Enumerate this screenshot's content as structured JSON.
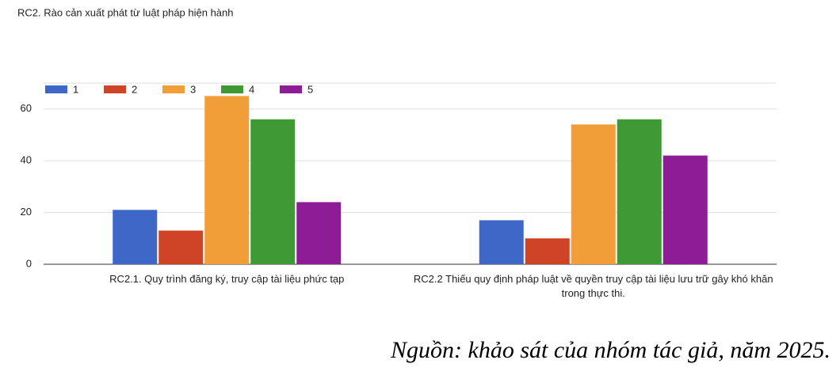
{
  "chart_data": {
    "type": "bar",
    "title": "RC2. Rào cản xuất phát từ luật pháp hiện hành",
    "categories": [
      "RC2.1. Quy trình đăng ký, truy cập tài liệu phức tạp",
      "RC2.2 Thiếu quy định pháp luật về quyền truy cập tài liệu lưu trữ gây khó khăn trong thực thi."
    ],
    "series": [
      {
        "name": "1",
        "color": "#3e67c8",
        "values": [
          21,
          17
        ]
      },
      {
        "name": "2",
        "color": "#cf4427",
        "values": [
          13,
          10
        ]
      },
      {
        "name": "3",
        "color": "#f19e38",
        "values": [
          65,
          54
        ]
      },
      {
        "name": "4",
        "color": "#3f9a36",
        "values": [
          56,
          56
        ]
      },
      {
        "name": "5",
        "color": "#8f1c97",
        "values": [
          24,
          42
        ]
      }
    ],
    "ylim": [
      0,
      70
    ],
    "yticks": [
      0,
      20,
      40,
      60
    ],
    "grid": true,
    "legend": "top-left"
  },
  "source": "Nguồn: khảo sát của nhóm tác giả, năm 2025."
}
